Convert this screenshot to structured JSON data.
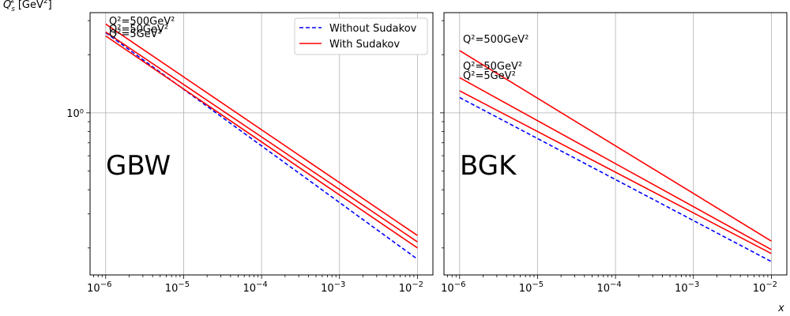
{
  "chart_data": {
    "type": "line",
    "ylabel": "Q_s^2 [GeV^2]",
    "ylabel_main": "Q",
    "ylabel_sub": "s",
    "ylabel_sup": "2",
    "ylabel_unit": "[GeV",
    "ylabel_unit_sup": "2",
    "ylabel_unit_close": "]",
    "xlabel": "x",
    "x_scale": "log",
    "y_scale": "log",
    "xlim": [
      6.3e-07,
      0.0158
    ],
    "ylim": [
      0.145,
      3.3
    ],
    "grid": true,
    "legend_position": "top-right of left panel",
    "y_tick_label": "10⁰",
    "x_ticks": [
      {
        "base": "10",
        "exp": "−6"
      },
      {
        "base": "10",
        "exp": "−5"
      },
      {
        "base": "10",
        "exp": "−4"
      },
      {
        "base": "10",
        "exp": "−3"
      },
      {
        "base": "10",
        "exp": "−2"
      }
    ],
    "legend": [
      {
        "label": "Without Sudakov",
        "color": "#0000ff",
        "style": "dashed"
      },
      {
        "label": "With Sudakov",
        "color": "#ff0000",
        "style": "solid"
      }
    ],
    "panels": [
      {
        "label": "GBW",
        "annotations": [
          "Q²=500GeV²",
          "Q²=50GeV²",
          "Q²=5GeV²"
        ],
        "series": [
          {
            "name": "Without Sudakov",
            "color": "#0000ff",
            "style": "dashed",
            "x": [
              1e-06,
              0.01
            ],
            "y": [
              2.6,
              0.175
            ]
          },
          {
            "name": "With Sudakov",
            "color": "#ff0000",
            "style": "solid",
            "x": [
              1e-06,
              0.01
            ],
            "y": [
              2.88,
              0.232
            ]
          },
          {
            "name": "With Sudakov",
            "color": "#ff0000",
            "style": "solid",
            "x": [
              1e-06,
              0.01
            ],
            "y": [
              2.62,
              0.215
            ]
          },
          {
            "name": "With Sudakov",
            "color": "#ff0000",
            "style": "solid",
            "x": [
              1e-06,
              0.01
            ],
            "y": [
              2.5,
              0.2
            ]
          }
        ]
      },
      {
        "label": "BGK",
        "annotations": [
          "Q²=500GeV²",
          "Q²=50GeV²",
          "Q²=5GeV²"
        ],
        "series": [
          {
            "name": "Without Sudakov",
            "color": "#0000ff",
            "style": "dashed",
            "x": [
              1e-06,
              0.01
            ],
            "y": [
              1.2,
              0.17
            ]
          },
          {
            "name": "With Sudakov",
            "color": "#ff0000",
            "style": "solid",
            "x": [
              1e-06,
              0.01
            ],
            "y": [
              2.1,
              0.217
            ]
          },
          {
            "name": "With Sudakov",
            "color": "#ff0000",
            "style": "solid",
            "x": [
              1e-06,
              0.01
            ],
            "y": [
              1.52,
              0.196
            ]
          },
          {
            "name": "With Sudakov",
            "color": "#ff0000",
            "style": "solid",
            "x": [
              1e-06,
              0.01
            ],
            "y": [
              1.3,
              0.187
            ]
          }
        ]
      }
    ]
  }
}
